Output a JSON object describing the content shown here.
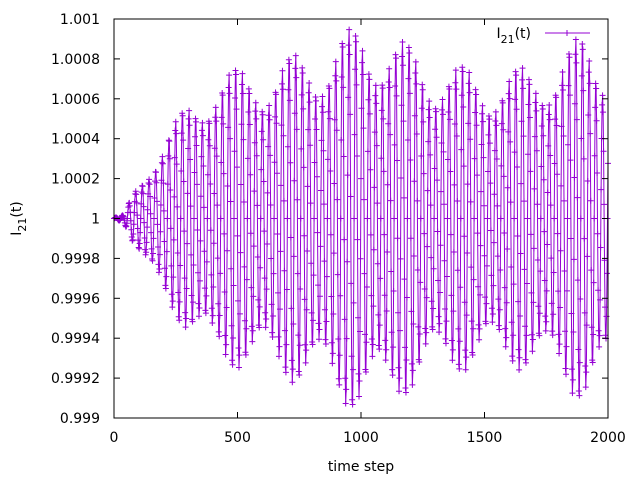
{
  "chart_data": {
    "type": "line",
    "title": "",
    "xlabel": "time step",
    "ylabel": {
      "base": "I",
      "sub": "21",
      "rest": "(t)"
    },
    "xlim": [
      0,
      2000
    ],
    "ylim": [
      0.999,
      1.001
    ],
    "xticks": [
      0,
      500,
      1000,
      1500,
      2000
    ],
    "xtick_labels": [
      "0",
      "500",
      "1000",
      "1500",
      "2000"
    ],
    "yticks": [
      0.999,
      0.9992,
      0.9994,
      0.9996,
      0.9998,
      1.0,
      1.0002,
      1.0004,
      1.0006,
      1.0008,
      1.001
    ],
    "ytick_labels": [
      "0.999",
      "0.9992",
      "0.9994",
      "0.9996",
      "0.9998",
      "1",
      "1.0002",
      "1.0004",
      "1.0006",
      "1.0008",
      "1.001"
    ],
    "grid": false,
    "legend_position": "top-right",
    "series": [
      {
        "name": {
          "base": "I",
          "sub": "21",
          "rest": "(t)"
        },
        "color": "#9400d3",
        "marker": "plus",
        "sample_step": 2,
        "oscillation_period": 27,
        "envelope": [
          [
            0,
            2e-06
          ],
          [
            40,
            1.5e-05
          ],
          [
            80,
            0.00012
          ],
          [
            130,
            0.00022
          ],
          [
            200,
            0.00033
          ],
          [
            300,
            0.0005
          ],
          [
            400,
            0.00062
          ],
          [
            600,
            0.00066
          ],
          [
            800,
            0.00072
          ],
          [
            1000,
            0.00083
          ],
          [
            1100,
            0.0008
          ],
          [
            1300,
            0.00068
          ],
          [
            1500,
            0.00063
          ],
          [
            1700,
            0.00065
          ],
          [
            1800,
            0.00072
          ],
          [
            1900,
            0.00078
          ],
          [
            2000,
            0.00074
          ]
        ]
      }
    ]
  }
}
